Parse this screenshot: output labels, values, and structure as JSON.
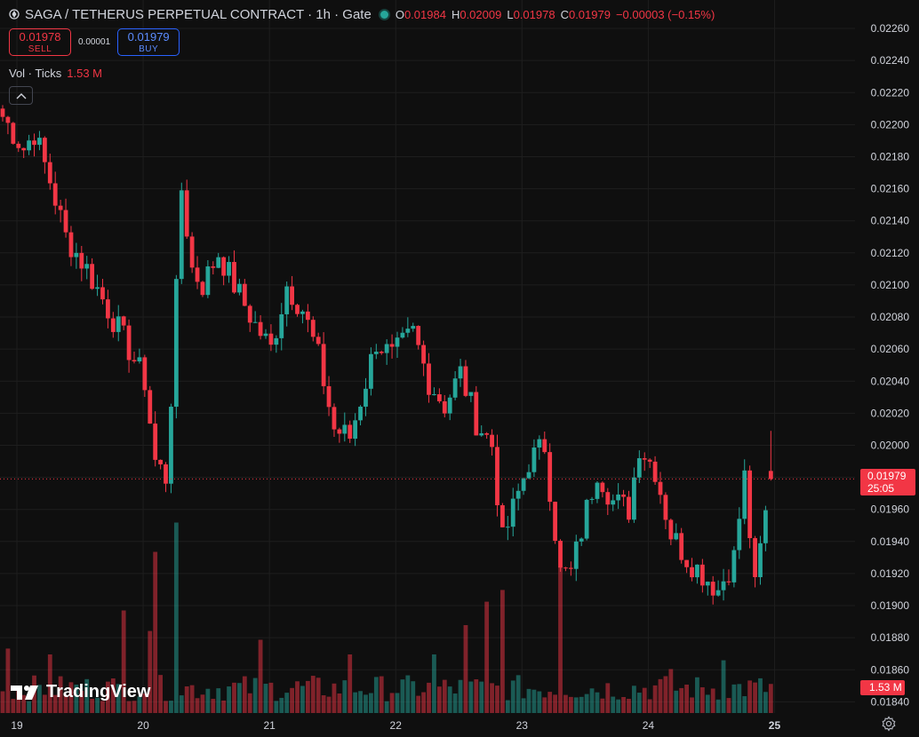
{
  "header": {
    "title": "SAGA / TETHERUS PERPETUAL CONTRACT · 1h · Gate",
    "ohlc": [
      {
        "key": "O",
        "value": "0.01984"
      },
      {
        "key": "H",
        "value": "0.02009"
      },
      {
        "key": "L",
        "value": "0.01978"
      },
      {
        "key": "C",
        "value": "0.01979"
      }
    ],
    "change": "−0.00003 (−0.15%)"
  },
  "trade": {
    "sell_price": "0.01978",
    "sell_label": "SELL",
    "spread": "0.00001",
    "buy_price": "0.01979",
    "buy_label": "BUY"
  },
  "volume_legend": {
    "label": "Vol · Ticks",
    "value": "1.53 M"
  },
  "last_price": {
    "value": "0.01979",
    "countdown": "25:05"
  },
  "volume_tag": "1.53 M",
  "branding": "TradingView",
  "colors": {
    "up": "#26a69a",
    "down": "#f23645",
    "background": "#0f0f0f",
    "grid": "#1e1e1e"
  },
  "chart_data": {
    "type": "candlestick",
    "ylim": [
      0.01833,
      0.02265
    ],
    "y_ticks": [
      "0.02260",
      "0.02240",
      "0.02220",
      "0.02200",
      "0.02180",
      "0.02160",
      "0.02140",
      "0.02120",
      "0.02100",
      "0.02080",
      "0.02060",
      "0.02040",
      "0.02020",
      "0.02000",
      "0.01980",
      "0.01960",
      "0.01940",
      "0.01920",
      "0.01900",
      "0.01880",
      "0.01860",
      "0.01840"
    ],
    "x_ticks": [
      "19",
      "20",
      "21",
      "22",
      "23",
      "24",
      "25"
    ],
    "x_tick_index": [
      0,
      24,
      48,
      72,
      96,
      120,
      144
    ],
    "candle_count": 147,
    "key_points": [
      {
        "i": 0,
        "p": 0.02205
      },
      {
        "i": 4,
        "p": 0.02185
      },
      {
        "i": 6,
        "p": 0.02195
      },
      {
        "i": 9,
        "p": 0.02165
      },
      {
        "i": 12,
        "p": 0.0213
      },
      {
        "i": 16,
        "p": 0.0211
      },
      {
        "i": 20,
        "p": 0.02085
      },
      {
        "i": 24,
        "p": 0.0206
      },
      {
        "i": 27,
        "p": 0.0204
      },
      {
        "i": 29,
        "p": 0.0199
      },
      {
        "i": 31,
        "p": 0.0198
      },
      {
        "i": 32,
        "p": 0.0203
      },
      {
        "i": 34,
        "p": 0.0216
      },
      {
        "i": 36,
        "p": 0.0211
      },
      {
        "i": 38,
        "p": 0.021
      },
      {
        "i": 41,
        "p": 0.0212
      },
      {
        "i": 44,
        "p": 0.021
      },
      {
        "i": 48,
        "p": 0.02075
      },
      {
        "i": 51,
        "p": 0.0206
      },
      {
        "i": 54,
        "p": 0.021
      },
      {
        "i": 57,
        "p": 0.02085
      },
      {
        "i": 60,
        "p": 0.02055
      },
      {
        "i": 63,
        "p": 0.0201
      },
      {
        "i": 66,
        "p": 0.02005
      },
      {
        "i": 69,
        "p": 0.0204
      },
      {
        "i": 71,
        "p": 0.02065
      },
      {
        "i": 74,
        "p": 0.02055
      },
      {
        "i": 78,
        "p": 0.0207
      },
      {
        "i": 81,
        "p": 0.0204
      },
      {
        "i": 84,
        "p": 0.02025
      },
      {
        "i": 87,
        "p": 0.02045
      },
      {
        "i": 90,
        "p": 0.02015
      },
      {
        "i": 93,
        "p": 0.02
      },
      {
        "i": 95,
        "p": 0.0194
      },
      {
        "i": 97,
        "p": 0.0196
      },
      {
        "i": 100,
        "p": 0.0199
      },
      {
        "i": 103,
        "p": 0.02
      },
      {
        "i": 106,
        "p": 0.0192
      },
      {
        "i": 108,
        "p": 0.0192
      },
      {
        "i": 111,
        "p": 0.0196
      },
      {
        "i": 113,
        "p": 0.01985
      },
      {
        "i": 116,
        "p": 0.01965
      },
      {
        "i": 119,
        "p": 0.0196
      },
      {
        "i": 121,
        "p": 0.02
      },
      {
        "i": 124,
        "p": 0.01985
      },
      {
        "i": 127,
        "p": 0.01945
      },
      {
        "i": 130,
        "p": 0.0193
      },
      {
        "i": 133,
        "p": 0.0192
      },
      {
        "i": 136,
        "p": 0.0191
      },
      {
        "i": 139,
        "p": 0.0193
      },
      {
        "i": 141,
        "p": 0.0198
      },
      {
        "i": 143,
        "p": 0.0191
      },
      {
        "i": 144,
        "p": 0.01935
      },
      {
        "i": 146,
        "p": 0.01979
      }
    ],
    "volume_spikes": [
      {
        "i": 1,
        "v": 0.22
      },
      {
        "i": 9,
        "v": 0.2
      },
      {
        "i": 23,
        "v": 0.35
      },
      {
        "i": 28,
        "v": 0.28
      },
      {
        "i": 29,
        "v": 0.55
      },
      {
        "i": 33,
        "v": 0.65
      },
      {
        "i": 49,
        "v": 0.25
      },
      {
        "i": 66,
        "v": 0.2
      },
      {
        "i": 82,
        "v": 0.2
      },
      {
        "i": 88,
        "v": 0.3
      },
      {
        "i": 92,
        "v": 0.38
      },
      {
        "i": 95,
        "v": 0.42
      },
      {
        "i": 106,
        "v": 0.5
      },
      {
        "i": 127,
        "v": 0.15
      },
      {
        "i": 137,
        "v": 0.18
      }
    ],
    "last_price": 0.01979
  }
}
